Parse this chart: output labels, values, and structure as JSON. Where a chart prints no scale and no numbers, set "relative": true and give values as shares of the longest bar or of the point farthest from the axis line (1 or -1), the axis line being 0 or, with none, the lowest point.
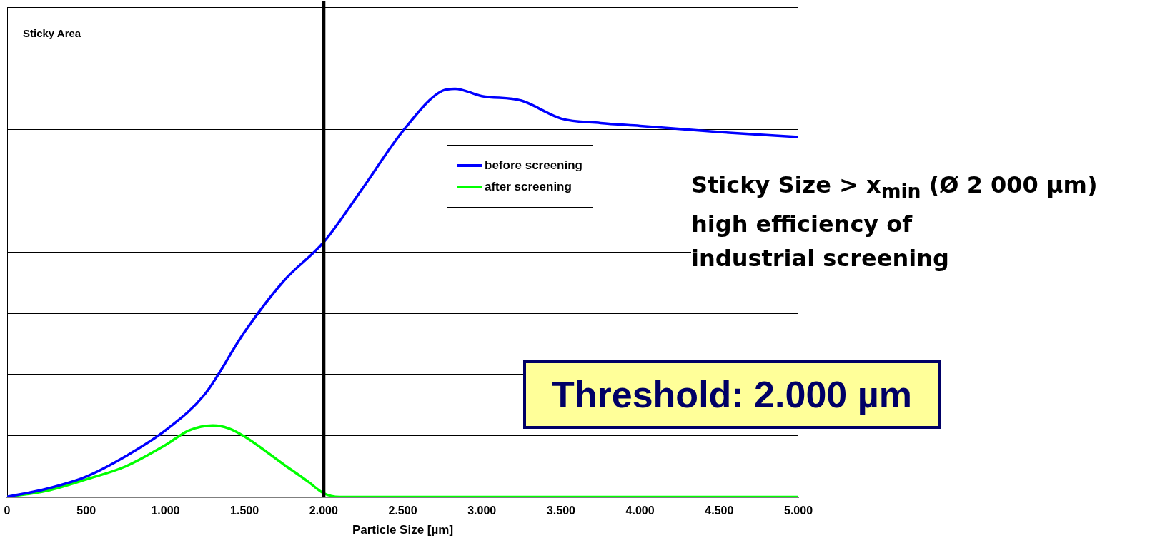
{
  "chart_data": {
    "type": "line",
    "relative": true,
    "ylabel": "Sticky Area",
    "xlabel": "Particle Size [µm]",
    "xlim": [
      0,
      5000
    ],
    "xticks": [
      0,
      500,
      {
        "value": 1000,
        "label": "1.000"
      },
      {
        "value": 1500,
        "label": "1.500"
      },
      {
        "value": 2000,
        "label": "2.000"
      },
      {
        "value": 2500,
        "label": "2.500"
      },
      {
        "value": 3000,
        "label": "3.000"
      },
      {
        "value": 3500,
        "label": "3.500"
      },
      {
        "value": 4000,
        "label": "4.000"
      },
      {
        "value": 4500,
        "label": "4.500"
      },
      {
        "value": 5000,
        "label": "5.000"
      }
    ],
    "grid": "y",
    "legend": "center",
    "marker": "none",
    "series": [
      {
        "name": "before screening",
        "color": "#0000ff",
        "x": [
          0,
          250,
          500,
          750,
          1000,
          1250,
          1500,
          1750,
          2000,
          2250,
          2500,
          2750,
          2830,
          3000,
          3250,
          3500,
          3750,
          4000,
          4500,
          5000
        ],
        "values": [
          0,
          0.02,
          0.05,
          0.1,
          0.163,
          0.252,
          0.404,
          0.53,
          0.624,
          0.758,
          0.896,
          0.995,
          1,
          0.982,
          0.971,
          0.927,
          0.916,
          0.909,
          0.894,
          0.882
        ]
      },
      {
        "name": "after screening",
        "color": "#00ff00",
        "x": [
          0,
          250,
          500,
          750,
          1000,
          1150,
          1300,
          1400,
          1500,
          1750,
          1900,
          2000,
          2100,
          5000
        ],
        "values": [
          0,
          0.015,
          0.043,
          0.075,
          0.127,
          0.163,
          0.175,
          0.168,
          0.148,
          0.079,
          0.038,
          0.009,
          0,
          0
        ]
      }
    ],
    "ref_lines": [
      {
        "axis": "x",
        "value": 2000,
        "color": "#000000"
      }
    ],
    "annotations": [
      "Sticky Size > x$_{min}$ (Ø 2 000 µm)",
      "high efficiency of industrial screening",
      "Threshold: 2.000 µm"
    ]
  }
}
